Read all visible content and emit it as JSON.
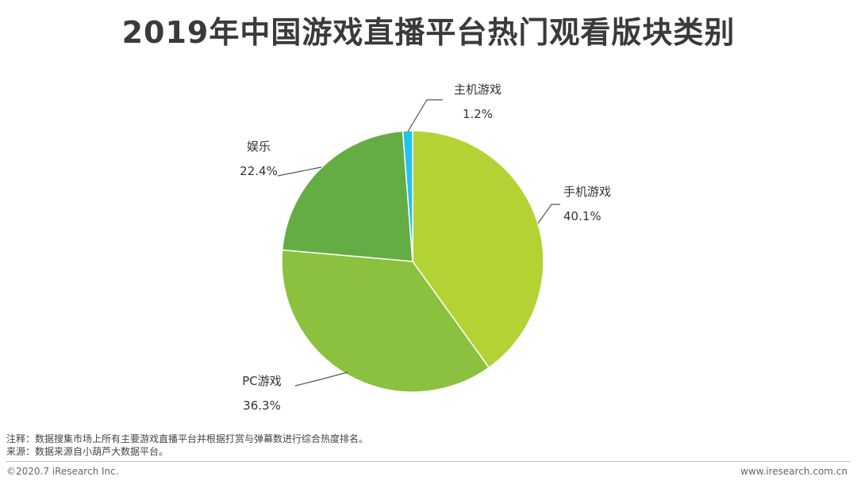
{
  "page": {
    "title": "2019年中国游戏直播平台热门观看版块类别",
    "note_line1": "注释：数据搜集市场上所有主要游戏直播平台并根据打赏与弹幕数进行综合热度排名。",
    "note_line2": "来源：数据来源自小葫芦大数据平台。",
    "copyright": "©2020.7 iResearch Inc.",
    "website": "www.iresearch.com.cn"
  },
  "chart_data": {
    "type": "pie",
    "title": "2019年中国游戏直播平台热门观看版块类别",
    "start_angle_deg": 0,
    "direction": "clockwise",
    "series": [
      {
        "name": "手机游戏",
        "value": 40.1,
        "label": "40.1%",
        "color": "#b3d335"
      },
      {
        "name": "PC游戏",
        "value": 36.3,
        "label": "36.3%",
        "color": "#8bc13e"
      },
      {
        "name": "娱乐",
        "value": 22.4,
        "label": "22.4%",
        "color": "#64ad44"
      },
      {
        "name": "主机游戏",
        "value": 1.2,
        "label": "1.2%",
        "color": "#21c4e8"
      }
    ]
  }
}
